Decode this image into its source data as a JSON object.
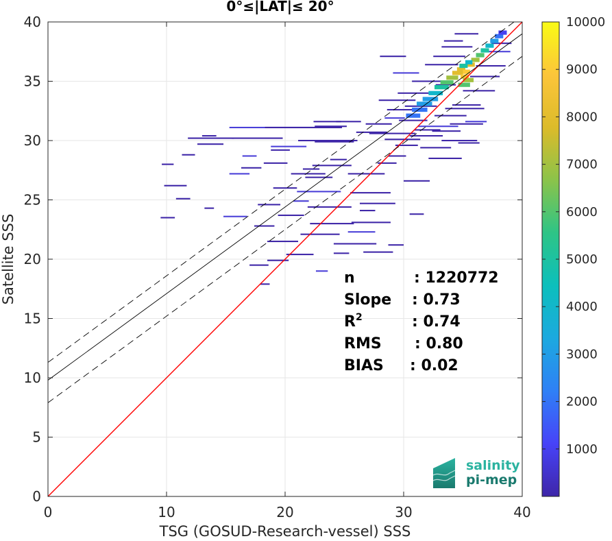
{
  "chart_data": {
    "type": "heatmap",
    "title": "0°≤|LAT|≤ 20°",
    "xlabel": "TSG (GOSUD-Research-vessel) SSS",
    "ylabel": "Satellite SSS",
    "xlim": [
      0,
      40
    ],
    "ylim": [
      0,
      40
    ],
    "xticks": [
      0,
      10,
      20,
      30,
      40
    ],
    "yticks": [
      0,
      5,
      10,
      15,
      20,
      25,
      30,
      35,
      40
    ],
    "grid": true,
    "colorbar": {
      "min": 0,
      "max": 10000,
      "ticks": [
        1000,
        2000,
        3000,
        4000,
        5000,
        6000,
        7000,
        8000,
        9000,
        10000
      ],
      "colormap": [
        "#3e26a8",
        "#4743f8",
        "#2f80f6",
        "#1ca9df",
        "#0cbfbc",
        "#2ec486",
        "#8bc34a",
        "#dcbb2a",
        "#fcc53a",
        "#f9fb15"
      ]
    },
    "lines": [
      {
        "name": "identity",
        "intercept": 0,
        "slope": 1,
        "color": "#ff0000",
        "style": "solid"
      },
      {
        "name": "fit",
        "intercept": 9.8,
        "slope": 0.73,
        "color": "#000000",
        "style": "solid"
      },
      {
        "name": "fit-upper",
        "intercept": 11.3,
        "slope": 0.73,
        "color": "#000000",
        "style": "dashed"
      },
      {
        "name": "fit-lower",
        "intercept": 7.9,
        "slope": 0.73,
        "color": "#000000",
        "style": "dashed"
      }
    ],
    "stats": [
      {
        "label": "n",
        "value": ": 1220772"
      },
      {
        "label": "Slope",
        "value": ": 0.73"
      },
      {
        "label": "R",
        "sup": "2",
        "value": ": 0.74"
      },
      {
        "label": "RMS",
        "value": ": 0.80"
      },
      {
        "label": "BIAS",
        "value": ": 0.02"
      }
    ],
    "segments": [
      [
        15.3,
        23.2,
        31.1
      ],
      [
        18.3,
        24.8,
        31.1
      ],
      [
        11.8,
        15.7,
        30.2
      ],
      [
        21.1,
        26.1,
        30.0
      ],
      [
        22.5,
        25.2,
        31.2
      ],
      [
        22.4,
        24.7,
        31.6
      ],
      [
        24.3,
        26.4,
        31.6
      ],
      [
        18.8,
        21.8,
        29.5
      ],
      [
        26.0,
        28.6,
        30.7
      ],
      [
        28.4,
        31.4,
        30.1
      ],
      [
        13.0,
        14.2,
        30.4
      ],
      [
        27.1,
        31.0,
        30.6
      ],
      [
        22.5,
        25.8,
        29.9
      ],
      [
        28.7,
        30.2,
        28.7
      ],
      [
        16.4,
        17.6,
        28.7
      ],
      [
        18.8,
        20.4,
        29.2
      ],
      [
        11.3,
        12.4,
        28.8
      ],
      [
        18.2,
        20.2,
        28.1
      ],
      [
        9.6,
        10.6,
        28.0
      ],
      [
        22.3,
        25.6,
        27.9
      ],
      [
        16.3,
        18.0,
        27.7
      ],
      [
        15.3,
        17.0,
        27.2
      ],
      [
        20.5,
        23.4,
        27.2
      ],
      [
        21.7,
        24.0,
        26.9
      ],
      [
        25.3,
        28.4,
        27.2
      ],
      [
        30.0,
        32.2,
        26.6
      ],
      [
        9.8,
        11.7,
        26.2
      ],
      [
        19.0,
        21.0,
        26.0
      ],
      [
        21.0,
        24.7,
        25.7
      ],
      [
        25.5,
        28.9,
        25.6
      ],
      [
        10.8,
        12.0,
        25.1
      ],
      [
        13.2,
        14.0,
        24.3
      ],
      [
        17.7,
        19.6,
        24.6
      ],
      [
        21.9,
        25.6,
        24.4
      ],
      [
        26.3,
        29.3,
        24.7
      ],
      [
        14.8,
        16.8,
        23.6
      ],
      [
        19.4,
        21.6,
        23.7
      ],
      [
        22.1,
        25.8,
        23.0
      ],
      [
        25.6,
        28.9,
        23.1
      ],
      [
        9.5,
        10.7,
        23.5
      ],
      [
        17.4,
        19.1,
        22.8
      ],
      [
        21.3,
        24.6,
        22.1
      ],
      [
        25.3,
        27.6,
        22.3
      ],
      [
        18.5,
        21.1,
        21.5
      ],
      [
        24.1,
        27.7,
        21.3
      ],
      [
        26.6,
        29.1,
        20.6
      ],
      [
        20.1,
        22.4,
        20.4
      ],
      [
        18.5,
        20.3,
        19.9
      ],
      [
        17.0,
        18.6,
        19.5
      ],
      [
        22.6,
        23.6,
        19.0
      ],
      [
        17.9,
        18.7,
        17.9
      ],
      [
        15.5,
        19.8,
        30.2
      ],
      [
        12.6,
        14.8,
        29.7
      ],
      [
        21.5,
        22.9,
        27.6
      ],
      [
        23.8,
        25.2,
        28.4
      ],
      [
        27.8,
        29.4,
        28.1
      ],
      [
        20.7,
        22.0,
        24.9
      ],
      [
        26.3,
        27.6,
        24.1
      ],
      [
        30.5,
        31.7,
        23.8
      ],
      [
        24.1,
        25.4,
        20.5
      ],
      [
        28.7,
        30.0,
        21.2
      ],
      [
        28.6,
        31.2,
        32.6
      ],
      [
        27.9,
        31.0,
        33.4
      ],
      [
        28.4,
        30.1,
        31.9
      ],
      [
        26.8,
        29.0,
        31.4
      ],
      [
        29.5,
        32.3,
        34.0
      ],
      [
        30.7,
        33.4,
        35.0
      ],
      [
        31.8,
        34.6,
        36.4
      ],
      [
        32.5,
        35.2,
        37.1
      ],
      [
        33.2,
        35.8,
        37.9
      ],
      [
        31.2,
        34.6,
        31.2
      ],
      [
        30.5,
        33.3,
        30.4
      ],
      [
        31.4,
        34.0,
        29.4
      ],
      [
        32.1,
        34.9,
        28.5
      ],
      [
        33.2,
        36.2,
        30.0
      ],
      [
        32.6,
        35.3,
        32.1
      ],
      [
        33.9,
        36.7,
        31.4
      ],
      [
        29.1,
        31.3,
        35.7
      ],
      [
        28.0,
        30.2,
        37.1
      ],
      [
        32.7,
        34.4,
        34.7
      ],
      [
        34.1,
        36.5,
        33.0
      ],
      [
        35.0,
        37.7,
        34.2
      ],
      [
        35.6,
        38.1,
        35.4
      ],
      [
        36.1,
        38.6,
        36.3
      ],
      [
        36.6,
        39.0,
        37.5
      ],
      [
        37.4,
        39.1,
        38.2
      ],
      [
        33.4,
        35.0,
        38.4
      ],
      [
        34.3,
        36.3,
        39.0
      ],
      [
        30.1,
        32.8,
        32.9
      ],
      [
        29.6,
        32.0,
        31.7
      ],
      [
        34.6,
        36.4,
        29.8
      ],
      [
        35.2,
        37.0,
        31.6
      ],
      [
        30.9,
        33.1,
        30.9
      ],
      [
        32.4,
        34.8,
        30.8
      ],
      [
        29.3,
        31.2,
        29.6
      ],
      [
        33.5,
        36.8,
        32.7
      ]
    ],
    "core_cells": [
      [
        30.2,
        31.4,
        32.1,
        2
      ],
      [
        30.7,
        32.0,
        32.6,
        2
      ],
      [
        31.1,
        32.4,
        33.1,
        3
      ],
      [
        31.6,
        32.9,
        33.5,
        3
      ],
      [
        32.1,
        33.3,
        34.0,
        4
      ],
      [
        32.6,
        33.8,
        34.5,
        5
      ],
      [
        33.1,
        34.2,
        34.9,
        6
      ],
      [
        33.6,
        34.6,
        35.3,
        7
      ],
      [
        34.1,
        35.0,
        35.7,
        8
      ],
      [
        34.5,
        35.2,
        36.0,
        8
      ],
      [
        34.8,
        35.5,
        35.4,
        9
      ],
      [
        35.0,
        35.6,
        35.8,
        9
      ],
      [
        35.3,
        36.0,
        36.4,
        8
      ],
      [
        35.7,
        36.4,
        36.8,
        7
      ],
      [
        36.1,
        36.8,
        37.2,
        6
      ],
      [
        36.5,
        37.2,
        37.6,
        5
      ],
      [
        36.9,
        37.6,
        38.0,
        4
      ],
      [
        37.3,
        38.0,
        38.4,
        3
      ],
      [
        37.7,
        38.4,
        38.8,
        2
      ],
      [
        38.0,
        38.7,
        39.1,
        1
      ],
      [
        34.6,
        35.6,
        34.7,
        6
      ],
      [
        35.0,
        35.9,
        35.1,
        7
      ],
      [
        34.7,
        35.4,
        36.3,
        5
      ],
      [
        35.2,
        35.8,
        36.6,
        4
      ]
    ]
  },
  "logo": {
    "line1": "salinity",
    "line2": "pi-mep",
    "color_top": "#2bb3a0",
    "color_bottom": "#1a7a6e"
  }
}
